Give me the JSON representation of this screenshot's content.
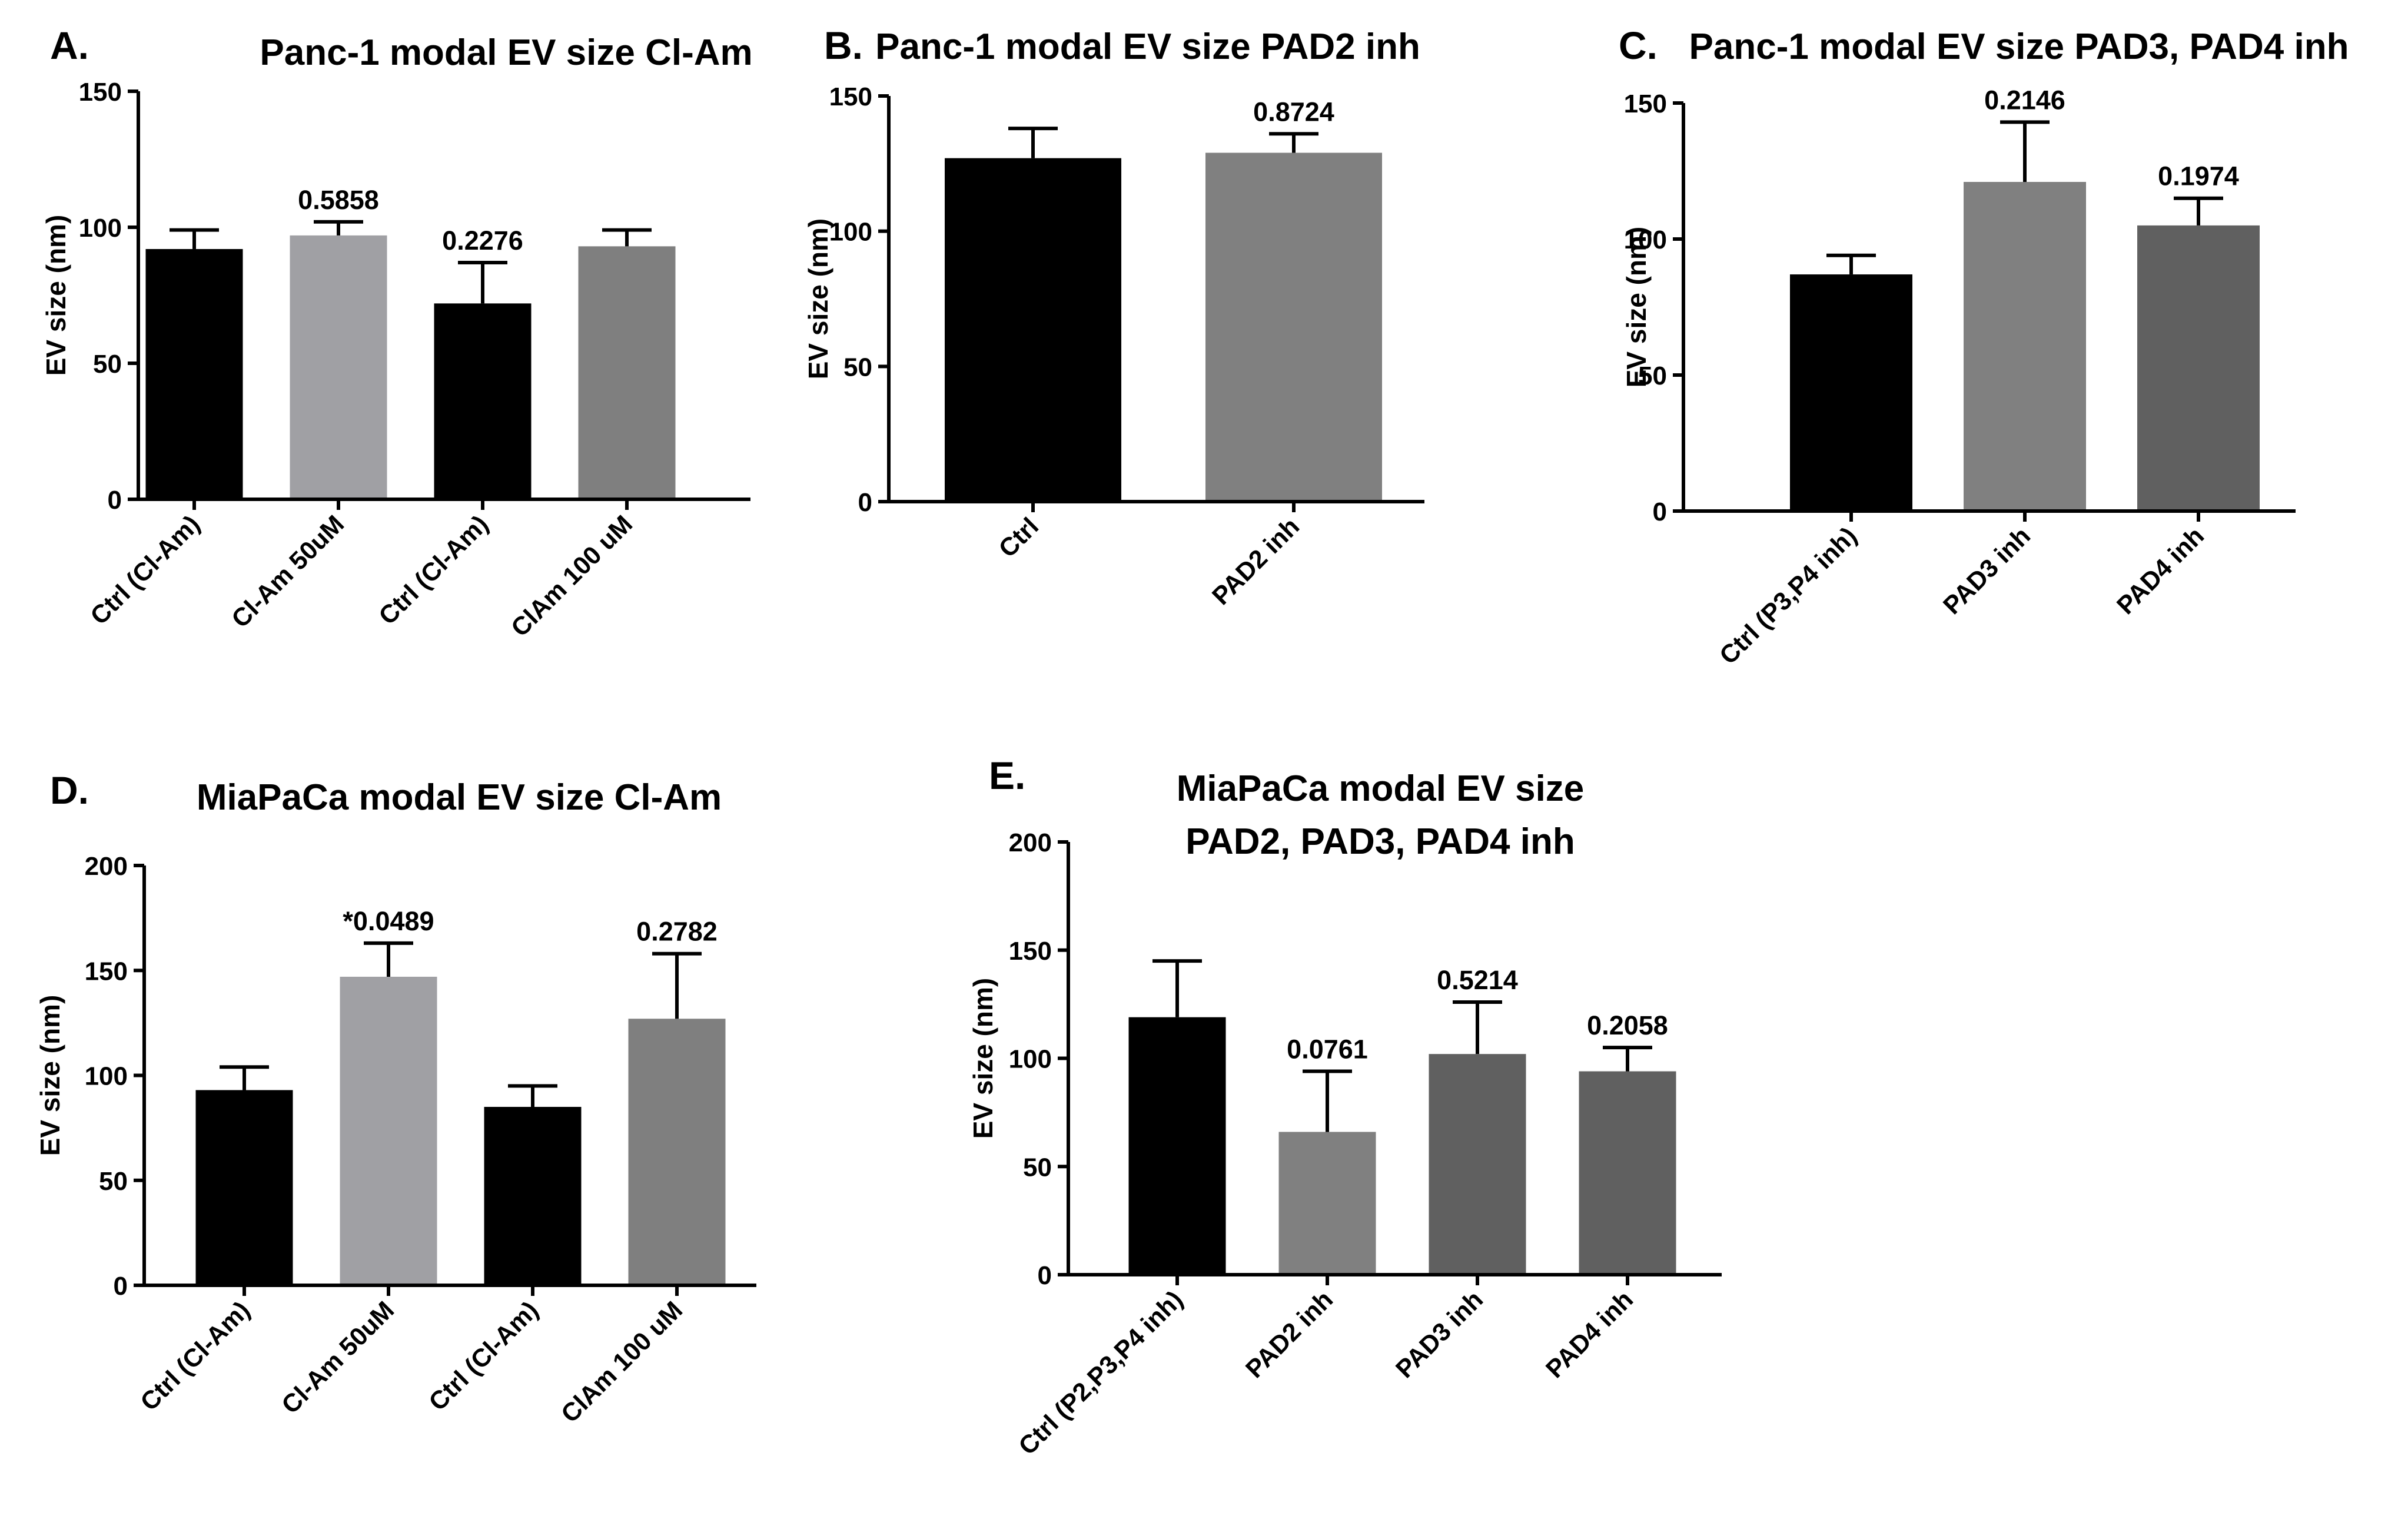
{
  "chart_data": [
    {
      "type": "bar",
      "panel": "A.",
      "title": [
        "Panc-1 modal EV size Cl-Am"
      ],
      "ylabel": "EV size (nm)",
      "ylim": [
        0,
        150
      ],
      "yticks": [
        0,
        50,
        100,
        150
      ],
      "categories": [
        "Ctrl (Cl-Am)",
        "Cl-Am 50uM",
        "Ctrl (Cl-Am)",
        "ClAm 100 uM"
      ],
      "values": [
        92,
        97,
        72,
        93
      ],
      "errors": [
        7,
        5,
        15,
        6
      ],
      "p_labels": [
        "",
        "0.5858",
        "0.2276",
        ""
      ],
      "colors": [
        "#000000",
        "#a0a0a4",
        "#000000",
        "#7f7f7f"
      ]
    },
    {
      "type": "bar",
      "panel": "B.",
      "title": [
        "Panc-1 modal EV size PAD2 inh"
      ],
      "ylabel": "EV size (nm)",
      "ylim": [
        0,
        150
      ],
      "yticks": [
        0,
        50,
        100,
        150
      ],
      "categories": [
        "Ctrl",
        "PAD2 inh"
      ],
      "values": [
        127,
        129
      ],
      "errors": [
        11,
        7
      ],
      "p_labels": [
        "",
        "0.8724"
      ],
      "colors": [
        "#000000",
        "#808080"
      ]
    },
    {
      "type": "bar",
      "panel": "C.",
      "title": [
        "Panc-1 modal EV size PAD3, PAD4  inh"
      ],
      "ylabel": "EV size (nm)",
      "ylim": [
        0,
        150
      ],
      "yticks": [
        0,
        50,
        100,
        150
      ],
      "categories": [
        "Ctrl (P3,P4 inh)",
        "PAD3 inh",
        "PAD4 inh"
      ],
      "values": [
        87,
        121,
        105
      ],
      "errors": [
        7,
        22,
        10
      ],
      "p_labels": [
        "",
        "0.2146",
        "0.1974"
      ],
      "colors": [
        "#000000",
        "#808080",
        "#606060"
      ]
    },
    {
      "type": "bar",
      "panel": "D.",
      "title": [
        "MiaPaCa  modal EV size Cl-Am"
      ],
      "ylabel": "EV size (nm)",
      "ylim": [
        0,
        200
      ],
      "yticks": [
        0,
        50,
        100,
        150,
        200
      ],
      "categories": [
        "Ctrl (Cl-Am)",
        "Cl-Am 50uM",
        "Ctrl (Cl-Am)",
        "ClAm 100 uM"
      ],
      "values": [
        93,
        147,
        85,
        127
      ],
      "errors": [
        11,
        16,
        10,
        31
      ],
      "p_labels": [
        "",
        "*0.0489",
        "",
        "0.2782"
      ],
      "colors": [
        "#000000",
        "#a0a0a4",
        "#000000",
        "#7f7f7f"
      ]
    },
    {
      "type": "bar",
      "panel": "E.",
      "title": [
        "MiaPaCa  modal EV size",
        "PAD2, PAD3, PAD4 inh"
      ],
      "ylabel": "EV size (nm)",
      "ylim": [
        0,
        200
      ],
      "yticks": [
        0,
        50,
        100,
        150,
        200
      ],
      "categories": [
        "Ctrl (P2,P3,P4 inh)",
        "PAD2 inh",
        "PAD3 inh",
        "PAD4 inh"
      ],
      "values": [
        119,
        66,
        102,
        94
      ],
      "errors": [
        26,
        28,
        24,
        11
      ],
      "p_labels": [
        "",
        "0.0761",
        "0.5214",
        "0.2058"
      ],
      "colors": [
        "#000000",
        "#808080",
        "#606060",
        "#606060"
      ]
    }
  ]
}
